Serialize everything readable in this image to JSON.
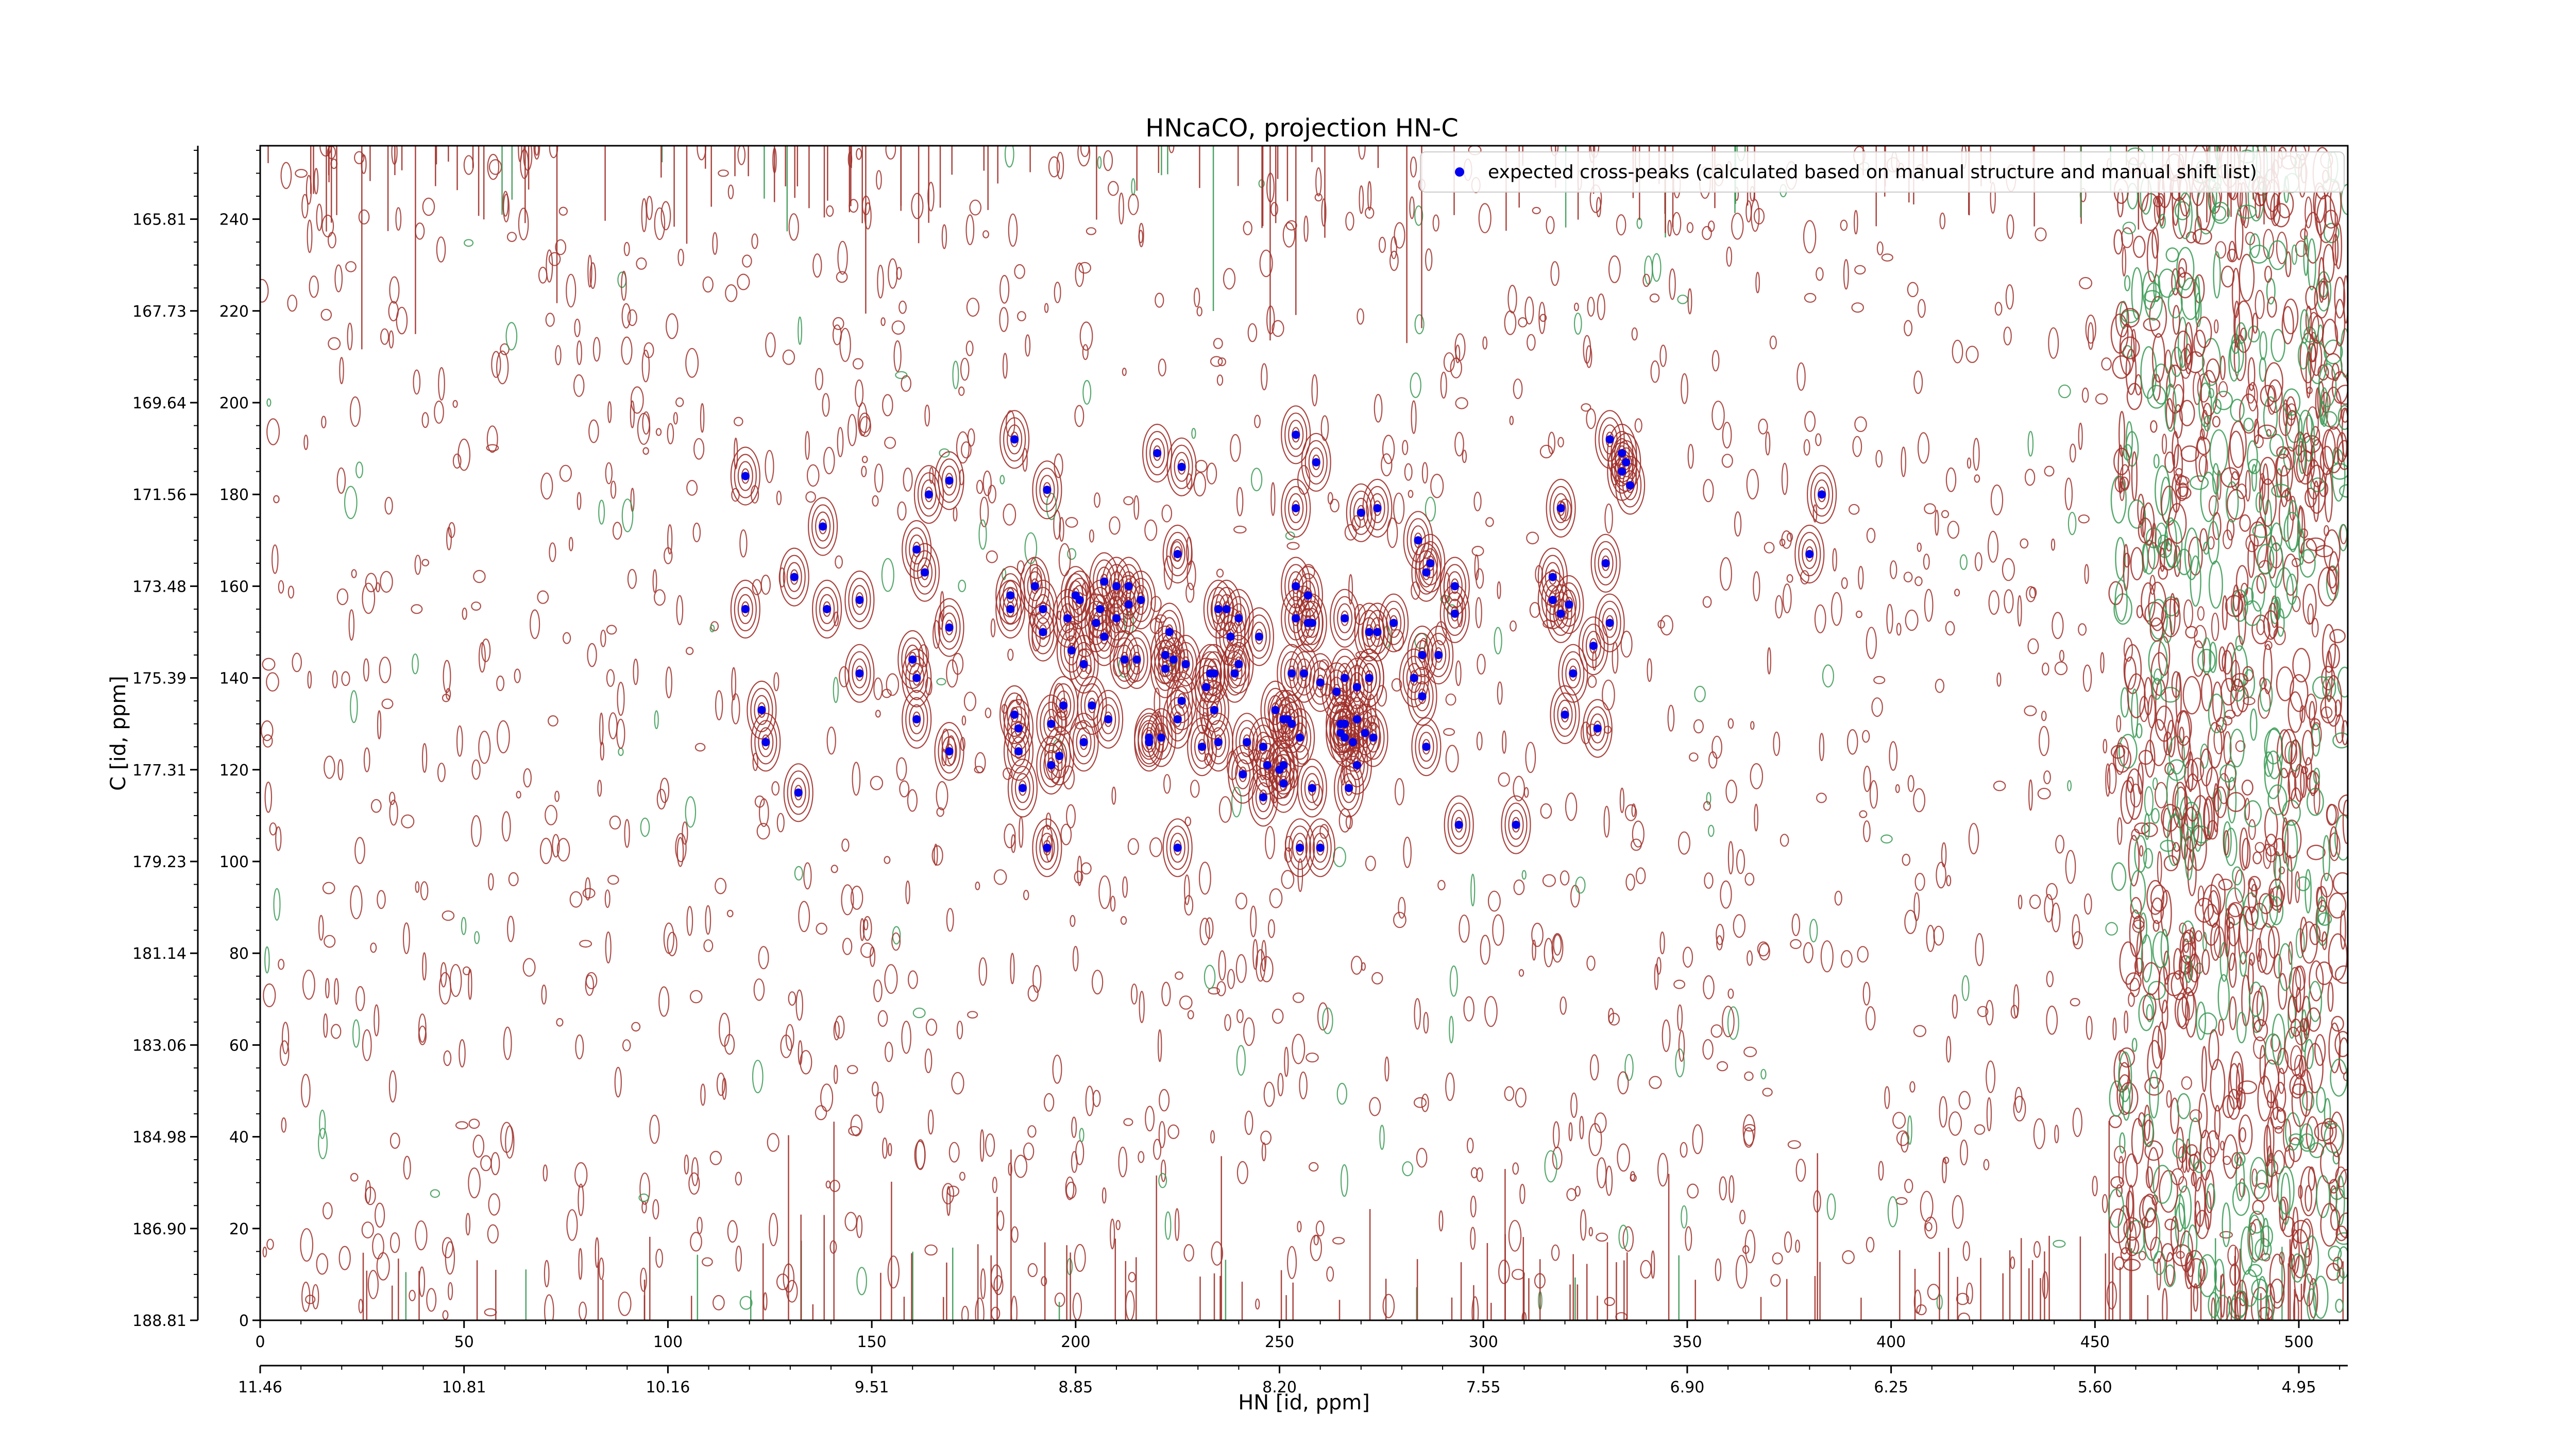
{
  "chart_data": {
    "type": "scatter",
    "title": "HNcaCO, projection HN-C",
    "xlabel": "HN [id, ppm]",
    "ylabel": "C [id, ppm]",
    "xlim": [
      0,
      512
    ],
    "ylim": [
      0,
      256
    ],
    "x_ticks_index": [
      "0",
      "50",
      "100",
      "150",
      "200",
      "250",
      "300",
      "350",
      "400",
      "450",
      "500"
    ],
    "x_ticks_ppm": [
      "11.46",
      "10.81",
      "10.16",
      "9.51",
      "8.85",
      "8.20",
      "7.55",
      "6.90",
      "6.25",
      "5.60",
      "4.95"
    ],
    "y_ticks_index": [
      "0",
      "20",
      "40",
      "60",
      "80",
      "100",
      "120",
      "140",
      "160",
      "180",
      "200",
      "220",
      "240"
    ],
    "y_ticks_ppm": [
      "188.81",
      "186.90",
      "184.98",
      "183.06",
      "181.14",
      "179.23",
      "177.31",
      "175.39",
      "173.48",
      "171.56",
      "169.64",
      "167.73",
      "165.81"
    ],
    "legend": {
      "label": "expected cross-peaks (calculated based on manual structure and manual shift list)",
      "position": "top-right"
    },
    "colors": {
      "positive_contour": "#a0302a",
      "negative_contour": "#3a9a55",
      "marker": "#0000ee",
      "frame": "#000000"
    },
    "series": [
      {
        "name": "expected cross-peaks (calculated based on manual structure and manual shift list)",
        "points": [
          [
            119,
            184
          ],
          [
            119,
            155
          ],
          [
            123,
            133
          ],
          [
            124,
            126
          ],
          [
            131,
            162
          ],
          [
            132,
            115
          ],
          [
            138,
            173
          ],
          [
            139,
            155
          ],
          [
            147,
            141
          ],
          [
            147,
            157
          ],
          [
            161,
            168
          ],
          [
            160,
            144
          ],
          [
            161,
            140
          ],
          [
            161,
            131
          ],
          [
            163,
            163
          ],
          [
            164,
            180
          ],
          [
            169,
            183
          ],
          [
            169,
            124
          ],
          [
            169,
            151
          ],
          [
            184,
            155
          ],
          [
            184,
            158
          ],
          [
            185,
            192
          ],
          [
            185,
            132
          ],
          [
            186,
            129
          ],
          [
            186,
            124
          ],
          [
            187,
            116
          ],
          [
            190,
            160
          ],
          [
            192,
            155
          ],
          [
            192,
            150
          ],
          [
            193,
            181
          ],
          [
            193,
            103
          ],
          [
            194,
            121
          ],
          [
            194,
            130
          ],
          [
            196,
            123
          ],
          [
            197,
            134
          ],
          [
            198,
            153
          ],
          [
            199,
            146
          ],
          [
            200,
            158
          ],
          [
            201,
            157
          ],
          [
            202,
            126
          ],
          [
            202,
            143
          ],
          [
            204,
            134
          ],
          [
            205,
            152
          ],
          [
            206,
            155
          ],
          [
            207,
            161
          ],
          [
            207,
            149
          ],
          [
            208,
            131
          ],
          [
            210,
            153
          ],
          [
            210,
            160
          ],
          [
            212,
            144
          ],
          [
            213,
            160
          ],
          [
            213,
            156
          ],
          [
            215,
            144
          ],
          [
            216,
            157
          ],
          [
            218,
            127
          ],
          [
            218,
            126
          ],
          [
            220,
            189
          ],
          [
            221,
            127
          ],
          [
            222,
            142
          ],
          [
            222,
            145
          ],
          [
            223,
            150
          ],
          [
            224,
            144
          ],
          [
            225,
            103
          ],
          [
            225,
            167
          ],
          [
            225,
            131
          ],
          [
            226,
            186
          ],
          [
            226,
            135
          ],
          [
            227,
            143
          ],
          [
            231,
            125
          ],
          [
            232,
            138
          ],
          [
            233,
            141
          ],
          [
            234,
            141
          ],
          [
            234,
            133
          ],
          [
            235,
            126
          ],
          [
            235,
            155
          ],
          [
            237,
            155
          ],
          [
            238,
            149
          ],
          [
            239,
            141
          ],
          [
            240,
            153
          ],
          [
            240,
            143
          ],
          [
            241,
            119
          ],
          [
            242,
            126
          ],
          [
            245,
            149
          ],
          [
            246,
            114
          ],
          [
            246,
            125
          ],
          [
            247,
            121
          ],
          [
            249,
            133
          ],
          [
            250,
            120
          ],
          [
            251,
            131
          ],
          [
            251,
            117
          ],
          [
            251,
            121
          ],
          [
            252,
            131
          ],
          [
            253,
            141
          ],
          [
            253,
            130
          ],
          [
            254,
            153
          ],
          [
            254,
            160
          ],
          [
            254,
            177
          ],
          [
            254,
            193
          ],
          [
            255,
            103
          ],
          [
            255,
            127
          ],
          [
            256,
            141
          ],
          [
            257,
            152
          ],
          [
            257,
            158
          ],
          [
            258,
            152
          ],
          [
            258,
            116
          ],
          [
            259,
            187
          ],
          [
            260,
            103
          ],
          [
            260,
            139
          ],
          [
            264,
            137
          ],
          [
            265,
            128
          ],
          [
            265,
            130
          ],
          [
            266,
            153
          ],
          [
            266,
            140
          ],
          [
            266,
            130
          ],
          [
            266,
            127
          ],
          [
            267,
            116
          ],
          [
            268,
            126
          ],
          [
            269,
            121
          ],
          [
            269,
            131
          ],
          [
            269,
            138
          ],
          [
            270,
            176
          ],
          [
            271,
            128
          ],
          [
            272,
            150
          ],
          [
            272,
            140
          ],
          [
            272,
            140
          ],
          [
            273,
            127
          ],
          [
            274,
            150
          ],
          [
            274,
            177
          ],
          [
            278,
            152
          ],
          [
            283,
            140
          ],
          [
            284,
            170
          ],
          [
            285,
            145
          ],
          [
            285,
            136
          ],
          [
            286,
            125
          ],
          [
            286,
            163
          ],
          [
            287,
            165
          ],
          [
            289,
            145
          ],
          [
            293,
            154
          ],
          [
            293,
            160
          ],
          [
            294,
            108
          ],
          [
            308,
            108
          ],
          [
            317,
            162
          ],
          [
            317,
            157
          ],
          [
            319,
            177
          ],
          [
            319,
            154
          ],
          [
            320,
            132
          ],
          [
            321,
            156
          ],
          [
            322,
            141
          ],
          [
            327,
            147
          ],
          [
            328,
            129
          ],
          [
            330,
            165
          ],
          [
            331,
            192
          ],
          [
            331,
            152
          ],
          [
            334,
            189
          ],
          [
            334,
            185
          ],
          [
            335,
            187
          ],
          [
            336,
            182
          ],
          [
            380,
            167
          ],
          [
            383,
            180
          ]
        ]
      }
    ],
    "grid": false
  }
}
